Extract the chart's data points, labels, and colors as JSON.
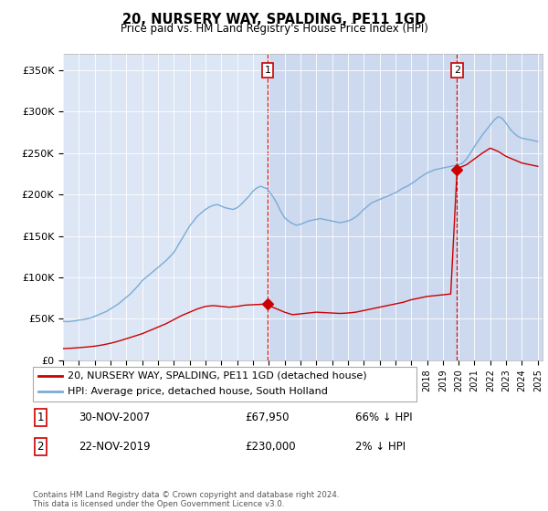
{
  "title": "20, NURSERY WAY, SPALDING, PE11 1GD",
  "subtitle": "Price paid vs. HM Land Registry's House Price Index (HPI)",
  "ylabel_ticks": [
    "£0",
    "£50K",
    "£100K",
    "£150K",
    "£200K",
    "£250K",
    "£300K",
    "£350K"
  ],
  "ytick_values": [
    0,
    50000,
    100000,
    150000,
    200000,
    250000,
    300000,
    350000
  ],
  "ylim": [
    0,
    370000
  ],
  "xlim_start": 1995.0,
  "xlim_end": 2025.3,
  "sale1_x": 2007.92,
  "sale1_y": 67950,
  "sale1_label": "1",
  "sale2_x": 2019.9,
  "sale2_y": 230000,
  "sale2_label": "2",
  "red_color": "#cc0000",
  "blue_color": "#7aacd6",
  "bg_color": "#dce6f5",
  "bg_color_right": "#ccd9ee",
  "grid_color": "#ffffff",
  "legend1": "20, NURSERY WAY, SPALDING, PE11 1GD (detached house)",
  "legend2": "HPI: Average price, detached house, South Holland",
  "table_row1_num": "1",
  "table_row1_date": "30-NOV-2007",
  "table_row1_price": "£67,950",
  "table_row1_hpi": "66% ↓ HPI",
  "table_row2_num": "2",
  "table_row2_date": "22-NOV-2019",
  "table_row2_price": "£230,000",
  "table_row2_hpi": "2% ↓ HPI",
  "footer": "Contains HM Land Registry data © Crown copyright and database right 2024.\nThis data is licensed under the Open Government Licence v3.0.",
  "hpi_x": [
    1995.0,
    1995.25,
    1995.5,
    1995.75,
    1996.0,
    1996.25,
    1996.5,
    1996.75,
    1997.0,
    1997.25,
    1997.5,
    1997.75,
    1998.0,
    1998.25,
    1998.5,
    1998.75,
    1999.0,
    1999.25,
    1999.5,
    1999.75,
    2000.0,
    2000.25,
    2000.5,
    2000.75,
    2001.0,
    2001.25,
    2001.5,
    2001.75,
    2002.0,
    2002.25,
    2002.5,
    2002.75,
    2003.0,
    2003.25,
    2003.5,
    2003.75,
    2004.0,
    2004.25,
    2004.5,
    2004.75,
    2005.0,
    2005.25,
    2005.5,
    2005.75,
    2006.0,
    2006.25,
    2006.5,
    2006.75,
    2007.0,
    2007.25,
    2007.5,
    2007.75,
    2007.92,
    2008.0,
    2008.25,
    2008.5,
    2008.75,
    2009.0,
    2009.25,
    2009.5,
    2009.75,
    2010.0,
    2010.25,
    2010.5,
    2010.75,
    2011.0,
    2011.25,
    2011.5,
    2011.75,
    2012.0,
    2012.25,
    2012.5,
    2012.75,
    2013.0,
    2013.25,
    2013.5,
    2013.75,
    2014.0,
    2014.25,
    2014.5,
    2014.75,
    2015.0,
    2015.25,
    2015.5,
    2015.75,
    2016.0,
    2016.25,
    2016.5,
    2016.75,
    2017.0,
    2017.25,
    2017.5,
    2017.75,
    2018.0,
    2018.25,
    2018.5,
    2018.75,
    2019.0,
    2019.25,
    2019.5,
    2019.75,
    2019.9,
    2020.0,
    2020.25,
    2020.5,
    2020.75,
    2021.0,
    2021.25,
    2021.5,
    2021.75,
    2022.0,
    2022.25,
    2022.5,
    2022.75,
    2023.0,
    2023.25,
    2023.5,
    2023.75,
    2024.0,
    2024.25,
    2024.5,
    2024.75,
    2025.0
  ],
  "hpi_y": [
    47000,
    46500,
    47000,
    47500,
    48500,
    49000,
    50000,
    51000,
    53000,
    55000,
    57000,
    59000,
    62000,
    65000,
    68000,
    72000,
    76000,
    80000,
    85000,
    90000,
    96000,
    100000,
    104000,
    108000,
    112000,
    116000,
    120000,
    125000,
    130000,
    138000,
    146000,
    154000,
    162000,
    168000,
    174000,
    178000,
    182000,
    185000,
    187000,
    188000,
    186000,
    184000,
    183000,
    182000,
    184000,
    188000,
    193000,
    198000,
    204000,
    208000,
    210000,
    208000,
    207000,
    204000,
    198000,
    190000,
    180000,
    172000,
    168000,
    165000,
    163000,
    164000,
    166000,
    168000,
    169000,
    170000,
    171000,
    170000,
    169000,
    168000,
    167000,
    166000,
    167000,
    168000,
    170000,
    173000,
    177000,
    182000,
    186000,
    190000,
    192000,
    194000,
    196000,
    198000,
    200000,
    202000,
    205000,
    208000,
    210000,
    213000,
    216000,
    220000,
    223000,
    226000,
    228000,
    230000,
    231000,
    232000,
    233000,
    234000,
    235000,
    235500,
    236000,
    238000,
    243000,
    250000,
    258000,
    265000,
    272000,
    278000,
    284000,
    290000,
    294000,
    292000,
    286000,
    279000,
    274000,
    270000,
    268000,
    267000,
    266000,
    265000,
    264000
  ],
  "red_x": [
    1995.0,
    1995.5,
    1996.0,
    1996.5,
    1997.0,
    1997.5,
    1998.0,
    1998.5,
    1999.0,
    1999.5,
    2000.0,
    2000.5,
    2001.0,
    2001.5,
    2002.0,
    2002.5,
    2003.0,
    2003.5,
    2004.0,
    2004.5,
    2005.0,
    2005.5,
    2006.0,
    2006.5,
    2007.0,
    2007.5,
    2007.92,
    2008.0,
    2008.5,
    2009.0,
    2009.5,
    2010.0,
    2010.5,
    2011.0,
    2011.5,
    2012.0,
    2012.5,
    2013.0,
    2013.5,
    2014.0,
    2014.5,
    2015.0,
    2015.5,
    2016.0,
    2016.5,
    2017.0,
    2017.5,
    2018.0,
    2018.5,
    2019.0,
    2019.5,
    2019.9,
    2020.0,
    2020.5,
    2021.0,
    2021.5,
    2022.0,
    2022.5,
    2023.0,
    2023.5,
    2024.0,
    2024.5,
    2025.0
  ],
  "red_y": [
    14000,
    14500,
    15200,
    16000,
    17000,
    18500,
    20500,
    23000,
    26000,
    29000,
    32000,
    36000,
    40000,
    44000,
    49000,
    54000,
    58000,
    62000,
    65000,
    66000,
    65000,
    64000,
    65000,
    66500,
    67000,
    67500,
    67950,
    66000,
    62000,
    58000,
    55000,
    56000,
    57000,
    58000,
    57500,
    57000,
    56500,
    57000,
    58000,
    60000,
    62000,
    64000,
    66000,
    68000,
    70000,
    73000,
    75000,
    77000,
    78000,
    79000,
    80000,
    230000,
    232000,
    236000,
    243000,
    250000,
    256000,
    252000,
    246000,
    242000,
    238000,
    236000,
    234000
  ]
}
